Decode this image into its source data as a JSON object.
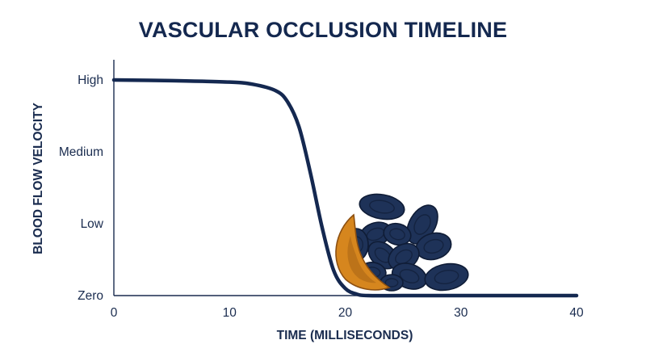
{
  "chart_data": {
    "type": "line",
    "title": "VASCULAR OCCLUSION TIMELINE",
    "xlabel": "TIME (MILLISECONDS)",
    "ylabel": "BLOOD FLOW VELOCITY",
    "xlim": [
      0,
      40
    ],
    "ylim": [
      0,
      3
    ],
    "x_ticks": [
      0,
      10,
      20,
      30,
      40
    ],
    "x_tick_labels": [
      "0",
      "10",
      "20",
      "30",
      "40"
    ],
    "y_ticks": [
      0,
      1,
      2,
      3
    ],
    "y_tick_labels": [
      "Zero",
      "Low",
      "Medium",
      "High"
    ],
    "grid": false,
    "series": [
      {
        "x": [
          0,
          5,
          10,
          12,
          14,
          15,
          16,
          17,
          18,
          19,
          20,
          21,
          22,
          25,
          30,
          35,
          40
        ],
        "y": [
          3.0,
          2.99,
          2.97,
          2.94,
          2.85,
          2.7,
          2.35,
          1.7,
          0.95,
          0.35,
          0.1,
          0.02,
          0.0,
          0.0,
          0.0,
          0.0,
          0.0
        ]
      }
    ],
    "colors": {
      "line": "#142850",
      "text": "#1a2c4f",
      "title": "#14284f",
      "axis": "#1a2c4f",
      "red_cell": "#1e3258",
      "red_cell_outline": "#0f1c36",
      "sickle_cell": "#d6861e",
      "sickle_cell_outline": "#8c4f10"
    }
  }
}
